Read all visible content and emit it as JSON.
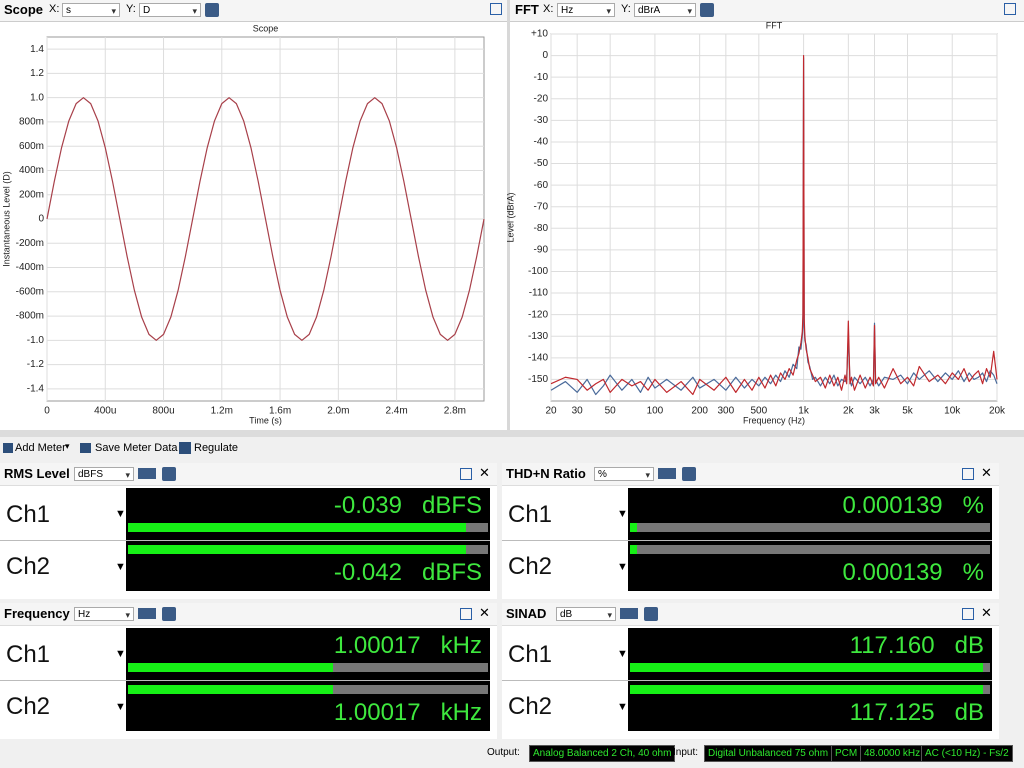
{
  "panels": {
    "scope": {
      "title": "Scope",
      "x_label": "X:",
      "x_unit": "s",
      "y_label": "Y:",
      "y_unit": "D"
    },
    "fft": {
      "title": "FFT",
      "x_label": "X:",
      "x_unit": "Hz",
      "y_label": "Y:",
      "y_unit": "dBrA"
    }
  },
  "chart_data": [
    {
      "type": "line",
      "title": "Scope",
      "x_axis_label": "Time (s)",
      "y_axis_label": "Instantaneous Level (D)",
      "color": "#a8404a",
      "grid": true,
      "x": [
        0,
        5e-05,
        0.0001,
        0.00015,
        0.0002,
        0.00025,
        0.0003,
        0.00035,
        0.0004,
        0.00045,
        0.0005,
        0.00055,
        0.0006,
        0.00065,
        0.0007,
        0.00075,
        0.0008,
        0.00085,
        0.0009,
        0.00095,
        0.001,
        0.00105,
        0.0011,
        0.00115,
        0.0012,
        0.00125,
        0.0013,
        0.00135,
        0.0014,
        0.00145,
        0.0015,
        0.00155,
        0.0016,
        0.00165,
        0.0017,
        0.00175,
        0.0018,
        0.00185,
        0.0019,
        0.00195,
        0.002,
        0.00205,
        0.0021,
        0.00215,
        0.0022,
        0.00225,
        0.0023,
        0.00235,
        0.0024,
        0.00245,
        0.0025,
        0.00255,
        0.0026,
        0.00265,
        0.0027,
        0.00275,
        0.0028,
        0.00285,
        0.0029,
        0.00295,
        0.003
      ],
      "values": [
        0,
        0.309,
        0.588,
        0.809,
        0.951,
        1,
        0.951,
        0.809,
        0.588,
        0.309,
        0,
        -0.309,
        -0.588,
        -0.809,
        -0.951,
        -1,
        -0.951,
        -0.809,
        -0.588,
        -0.309,
        0,
        0.309,
        0.588,
        0.809,
        0.951,
        1,
        0.951,
        0.809,
        0.588,
        0.309,
        0,
        -0.309,
        -0.588,
        -0.809,
        -0.951,
        -1,
        -0.951,
        -0.809,
        -0.588,
        -0.309,
        0,
        0.309,
        0.588,
        0.809,
        0.951,
        1,
        0.951,
        0.809,
        0.588,
        0.309,
        0,
        -0.309,
        -0.588,
        -0.809,
        -0.951,
        -1,
        -0.951,
        -0.809,
        -0.588,
        -0.309,
        0
      ],
      "xlim": [
        0,
        0.003
      ],
      "xticks": [
        0,
        {
          "value": 0.0004,
          "label": "400u"
        },
        {
          "value": 0.0008,
          "label": "800u"
        },
        {
          "value": 0.0012,
          "label": "1.2m"
        },
        {
          "value": 0.0016,
          "label": "1.6m"
        },
        {
          "value": 0.002,
          "label": "2.0m"
        },
        {
          "value": 0.0024,
          "label": "2.4m"
        },
        {
          "value": 0.0028,
          "label": "2.8m"
        }
      ],
      "ylim": [
        -1.5,
        1.5
      ],
      "yticks": [
        1.4,
        1.2,
        {
          "value": 1,
          "label": "1.0"
        },
        {
          "value": 0.8,
          "label": "800m"
        },
        {
          "value": 0.6,
          "label": "600m"
        },
        {
          "value": 0.4,
          "label": "400m"
        },
        {
          "value": 0.2,
          "label": "200m"
        },
        0,
        {
          "value": -0.2,
          "label": "-200m"
        },
        {
          "value": -0.4,
          "label": "-400m"
        },
        {
          "value": -0.6,
          "label": "-600m"
        },
        {
          "value": -0.8,
          "label": "-800m"
        },
        {
          "value": -1,
          "label": "-1.0"
        },
        -1.2,
        -1.4
      ]
    },
    {
      "type": "line",
      "title": "FFT",
      "x_axis_label": "Frequency (Hz)",
      "y_axis_label": "Level (dBrA)",
      "log_x": true,
      "grid": true,
      "x": [
        20,
        25,
        30,
        35,
        40,
        45,
        50,
        60,
        70,
        80,
        90,
        100,
        120,
        150,
        180,
        200,
        250,
        300,
        350,
        400,
        450,
        500,
        550,
        600,
        650,
        700,
        750,
        800,
        850,
        900,
        930,
        960,
        980,
        990,
        1000,
        1010,
        1020,
        1040,
        1070,
        1100,
        1150,
        1200,
        1300,
        1400,
        1500,
        1600,
        1700,
        1800,
        1900,
        1950,
        2000,
        2050,
        2100,
        2200,
        2400,
        2600,
        2800,
        2950,
        3000,
        3050,
        3200,
        3500,
        4000,
        4500,
        5000,
        5500,
        6000,
        7000,
        8000,
        9000,
        10000,
        11000,
        12000,
        13000,
        14000,
        15000,
        16000,
        17000,
        18000,
        19000,
        20000
      ],
      "series": [
        {
          "color": "#4a6a9a",
          "values": [
            -155,
            -151,
            -156,
            -150,
            -157,
            -153,
            -148,
            -155,
            -150,
            -156,
            -149,
            -154,
            -150,
            -155,
            -149,
            -154,
            -150,
            -155,
            -149,
            -154,
            -150,
            -153,
            -149,
            -152,
            -148,
            -151,
            -146,
            -149,
            -143,
            -145,
            -135,
            -136,
            -130,
            -125,
            -1,
            -126,
            -132,
            -134,
            -142,
            -144,
            -150,
            -149,
            -153,
            -149,
            -152,
            -148,
            -153,
            -150,
            -151,
            -149,
            -130,
            -150,
            -153,
            -149,
            -152,
            -149,
            -153,
            -150,
            -124,
            -150,
            -153,
            -149,
            -150,
            -148,
            -152,
            -147,
            -150,
            -146,
            -151,
            -147,
            -150,
            -146,
            -151,
            -147,
            -150,
            -149,
            -147,
            -151,
            -146,
            -148,
            -152
          ]
        },
        {
          "color": "#c0282d",
          "values": [
            -152,
            -149,
            -150,
            -155,
            -152,
            -150,
            -156,
            -150,
            -153,
            -151,
            -155,
            -150,
            -156,
            -151,
            -157,
            -150,
            -155,
            -149,
            -156,
            -150,
            -155,
            -149,
            -154,
            -148,
            -153,
            -147,
            -150,
            -145,
            -148,
            -141,
            -138,
            -133,
            -128,
            -120,
            0,
            -122,
            -130,
            -136,
            -140,
            -145,
            -148,
            -151,
            -149,
            -154,
            -148,
            -153,
            -149,
            -155,
            -148,
            -152,
            -123,
            -152,
            -149,
            -155,
            -148,
            -154,
            -149,
            -153,
            -125,
            -152,
            -149,
            -154,
            -145,
            -152,
            -149,
            -153,
            -144,
            -151,
            -148,
            -152,
            -147,
            -150,
            -145,
            -151,
            -148,
            -146,
            -152,
            -145,
            -149,
            -137,
            -150
          ]
        }
      ],
      "xlim": [
        20,
        20000
      ],
      "xticks": [
        20,
        30,
        50,
        100,
        200,
        300,
        500,
        {
          "value": 1000,
          "label": "1k"
        },
        {
          "value": 2000,
          "label": "2k"
        },
        {
          "value": 3000,
          "label": "3k"
        },
        {
          "value": 5000,
          "label": "5k"
        },
        {
          "value": 10000,
          "label": "10k"
        },
        {
          "value": 20000,
          "label": "20k"
        }
      ],
      "ylim": [
        -160,
        10
      ],
      "yticks": [
        {
          "value": 10,
          "label": "+10"
        },
        0,
        -10,
        -20,
        -30,
        -40,
        -50,
        -60,
        -70,
        -80,
        -90,
        -100,
        -110,
        -120,
        -130,
        -140,
        -150
      ]
    }
  ],
  "toolbar": {
    "add_meter": "Add Meter",
    "save_meter_data": "Save Meter Data",
    "regulate": "Regulate"
  },
  "meters": [
    {
      "title": "RMS Level",
      "unit": "dBFS",
      "channels": [
        {
          "name": "Ch1",
          "value": "-0.039",
          "unit": "dBFS"
        },
        {
          "name": "Ch2",
          "value": "-0.042",
          "unit": "dBFS"
        }
      ]
    },
    {
      "title": "THD+N Ratio",
      "unit": "%",
      "channels": [
        {
          "name": "Ch1",
          "value": "0.000139",
          "unit": "%"
        },
        {
          "name": "Ch2",
          "value": "0.000139",
          "unit": "%"
        }
      ]
    },
    {
      "title": "Frequency",
      "unit": "Hz",
      "channels": [
        {
          "name": "Ch1",
          "value": "1.00017",
          "unit": "kHz"
        },
        {
          "name": "Ch2",
          "value": "1.00017",
          "unit": "kHz"
        }
      ]
    },
    {
      "title": "SINAD",
      "unit": "dB",
      "channels": [
        {
          "name": "Ch1",
          "value": "117.160",
          "unit": "dB"
        },
        {
          "name": "Ch2",
          "value": "117.125",
          "unit": "dB"
        }
      ]
    }
  ],
  "status": {
    "output_label": "Output:",
    "output": "Analog Balanced 2 Ch, 40 ohm",
    "input_label": "Input:",
    "input": "Digital Unbalanced 75 ohm",
    "format": "PCM",
    "sample_rate": "48.0000 kHz",
    "filter": "AC (<10 Hz) - Fs/2"
  }
}
